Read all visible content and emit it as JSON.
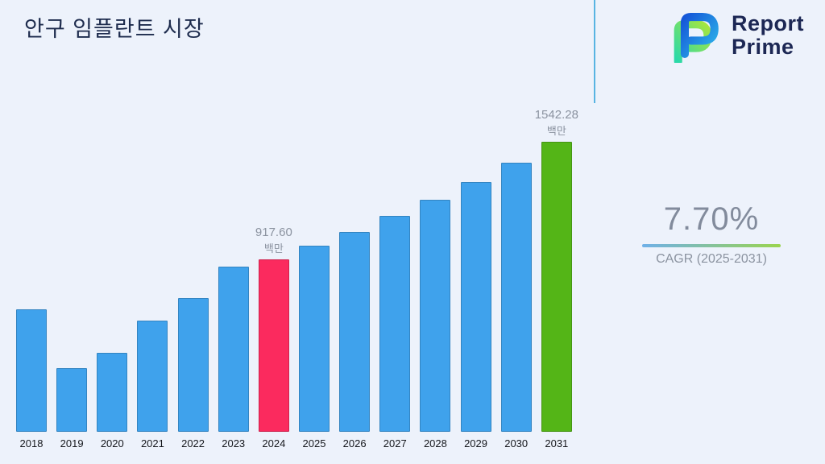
{
  "page": {
    "title": "안구 임플란트 시장"
  },
  "brand": {
    "line1": "Report",
    "line2": "Prime"
  },
  "stats": {
    "cagr_value": "7.70%",
    "cagr_label": "CAGR (2025-2031)"
  },
  "chart_data": {
    "type": "bar",
    "title": "안구 임플란트 시장",
    "categories": [
      "2018",
      "2019",
      "2020",
      "2021",
      "2022",
      "2023",
      "2024",
      "2025",
      "2026",
      "2027",
      "2028",
      "2029",
      "2030",
      "2031"
    ],
    "values": [
      650,
      340,
      420,
      590,
      710,
      880,
      917.6,
      988.26,
      1064.36,
      1146.31,
      1234.58,
      1329.64,
      1432.02,
      1542.28
    ],
    "unit": "백만",
    "annotations": {
      "2024": {
        "value": "917.60",
        "unit": "백만"
      },
      "2031": {
        "value": "1542.28",
        "unit": "백만"
      }
    },
    "colors": {
      "default": "#3FA2EC"
    },
    "bar_colors": {
      "2024": "#FB2A5E",
      "2031": "#54B517"
    },
    "xlabel": "",
    "ylabel": "",
    "ylim": [
      0,
      1600
    ],
    "grid": false,
    "legend": "none",
    "cagr": "7.70%",
    "cagr_period": "2025-2031"
  }
}
